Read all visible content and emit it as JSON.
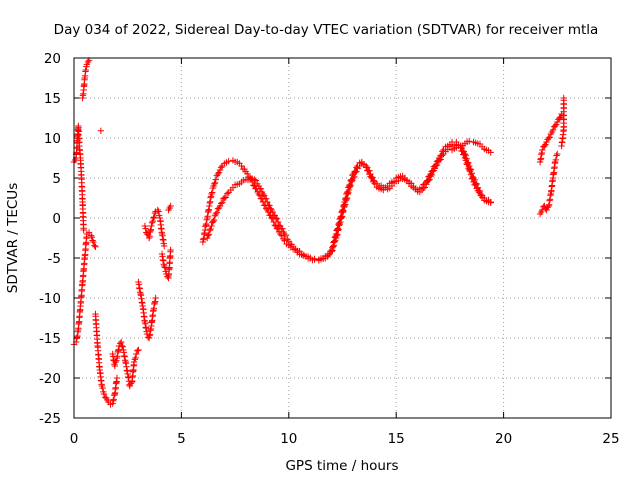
{
  "chart_data": {
    "type": "scatter",
    "title": "Day 034 of 2022, Sidereal Day-to-day VTEC variation (SDTVAR) for receiver mtla",
    "xlabel": "GPS time / hours",
    "ylabel": "SDTVAR / TECUs",
    "xlim": [
      0,
      25
    ],
    "ylim": [
      -25,
      20
    ],
    "xticks": [
      0,
      5,
      10,
      15,
      20,
      25
    ],
    "yticks": [
      -25,
      -20,
      -15,
      -10,
      -5,
      0,
      5,
      10,
      15,
      20
    ],
    "grid": true,
    "marker": "+",
    "colors": {
      "points": "#ff0000",
      "grid": "#a0a0a0",
      "axes": "#000000"
    },
    "series": [
      {
        "name": "segment-1",
        "x": [
          0.0,
          0.1,
          0.2,
          0.3,
          0.4,
          0.5,
          0.6,
          0.7,
          0.8,
          0.9,
          1.0
        ],
        "y": [
          -15.8,
          -15.5,
          -14.0,
          -11.0,
          -8.0,
          -5.0,
          -2.0,
          -1.8,
          -2.2,
          -3.0,
          -3.6
        ]
      },
      {
        "name": "segment-2",
        "x": [
          0.0,
          0.1,
          0.15,
          0.2,
          0.25,
          0.3,
          0.35,
          0.4,
          0.45
        ],
        "y": [
          7.0,
          7.5,
          9.5,
          11.5,
          9.0,
          7.5,
          5.0,
          2.0,
          -1.5
        ]
      },
      {
        "name": "segment-3",
        "x": [
          0.4,
          0.45,
          0.5,
          0.55,
          0.6,
          0.65,
          0.7
        ],
        "y": [
          15.0,
          16.0,
          17.5,
          18.5,
          19.2,
          19.5,
          19.7
        ]
      },
      {
        "name": "outlier-1",
        "x": [
          1.25
        ],
        "y": [
          10.9
        ]
      },
      {
        "name": "segment-4",
        "x": [
          1.0,
          1.1,
          1.2,
          1.3,
          1.4,
          1.5,
          1.6,
          1.7,
          1.8,
          1.9,
          2.0
        ],
        "y": [
          -12.0,
          -16.0,
          -19.0,
          -21.0,
          -22.0,
          -22.5,
          -23.0,
          -23.3,
          -23.2,
          -22.0,
          -20.0
        ]
      },
      {
        "name": "segment-5",
        "x": [
          1.8,
          1.9,
          2.0,
          2.1,
          2.2,
          2.3,
          2.4,
          2.5,
          2.6,
          2.7,
          2.8,
          2.9,
          3.0
        ],
        "y": [
          -17.0,
          -18.5,
          -17.5,
          -16.0,
          -15.5,
          -16.5,
          -18.0,
          -19.5,
          -21.0,
          -20.5,
          -18.0,
          -17.0,
          -16.5
        ]
      },
      {
        "name": "segment-6",
        "x": [
          3.0,
          3.1,
          3.2,
          3.3,
          3.4,
          3.5,
          3.6,
          3.7,
          3.8
        ],
        "y": [
          -8.0,
          -9.5,
          -11.0,
          -13.0,
          -14.5,
          -15.0,
          -13.5,
          -11.5,
          -10.0
        ]
      },
      {
        "name": "segment-7",
        "x": [
          3.3,
          3.4,
          3.5,
          3.6,
          3.7,
          3.8,
          3.9,
          4.0,
          4.1,
          4.2
        ],
        "y": [
          -1.0,
          -2.0,
          -2.5,
          -1.0,
          0.0,
          0.8,
          1.0,
          0.0,
          -2.0,
          -3.5
        ]
      },
      {
        "name": "segment-8",
        "x": [
          4.1,
          4.2,
          4.3,
          4.4,
          4.5
        ],
        "y": [
          -4.5,
          -6.0,
          -7.0,
          -7.5,
          -4.0
        ]
      },
      {
        "name": "segment-9",
        "x": [
          4.4,
          4.5
        ],
        "y": [
          1.0,
          1.5
        ]
      },
      {
        "name": "segment-10",
        "x": [
          6.0,
          6.1,
          6.2,
          6.3,
          6.4,
          6.5,
          6.6,
          6.7,
          6.8,
          6.9,
          7.0,
          7.2,
          7.4,
          7.6,
          7.8,
          8.0,
          8.2,
          8.4,
          8.6,
          8.8,
          9.0,
          9.2,
          9.4,
          9.6,
          9.8,
          10.0,
          10.2,
          10.4,
          10.6,
          10.8,
          11.0,
          11.2,
          11.4,
          11.6,
          11.8,
          12.0,
          12.2,
          12.4,
          12.6,
          12.8,
          13.0,
          13.2,
          13.4,
          13.6,
          13.8,
          14.0,
          14.2,
          14.4,
          14.6,
          14.8,
          15.0,
          15.2,
          15.4,
          15.6,
          15.8,
          16.0,
          16.2,
          16.4,
          16.6,
          16.8,
          17.0,
          17.2,
          17.4,
          17.6,
          17.8,
          18.0,
          18.2,
          18.4,
          18.6,
          18.8,
          19.0,
          19.2,
          19.4
        ],
        "y": [
          -3.0,
          -1.5,
          0.0,
          1.5,
          3.0,
          4.0,
          4.8,
          5.5,
          6.0,
          6.5,
          6.8,
          7.1,
          7.2,
          7.0,
          6.5,
          5.8,
          5.0,
          4.0,
          3.0,
          2.0,
          1.0,
          0.0,
          -1.0,
          -2.0,
          -2.8,
          -3.4,
          -3.9,
          -4.3,
          -4.6,
          -4.8,
          -5.0,
          -5.1,
          -5.2,
          -5.0,
          -4.7,
          -4.0,
          -2.0,
          0.0,
          2.0,
          4.0,
          5.5,
          6.5,
          7.0,
          6.5,
          5.5,
          4.5,
          4.0,
          3.8,
          4.0,
          4.5,
          5.0,
          5.2,
          5.0,
          4.5,
          4.0,
          3.5,
          3.8,
          4.5,
          5.5,
          6.5,
          7.5,
          8.5,
          9.0,
          9.5,
          9.5,
          9.0,
          8.0,
          6.5,
          5.0,
          3.8,
          2.8,
          2.2,
          2.0
        ]
      },
      {
        "name": "segment-11",
        "x": [
          6.2,
          6.4,
          6.6,
          6.8,
          7.0,
          7.2,
          7.4,
          7.6,
          7.8,
          8.0,
          8.2,
          8.4,
          8.6,
          8.8,
          9.0,
          9.2,
          9.4,
          9.6,
          9.8,
          10.0,
          10.2,
          10.4,
          10.6,
          10.8,
          11.0,
          11.2,
          11.4,
          11.6,
          11.8,
          12.0,
          12.2,
          12.4,
          12.6,
          12.8,
          13.0,
          13.2,
          13.4,
          13.6,
          13.8,
          14.0,
          14.2,
          14.4,
          14.6,
          14.8,
          15.0,
          15.2,
          15.4,
          15.6,
          15.8,
          16.0,
          16.2,
          16.4,
          16.6,
          16.8,
          17.0,
          17.2,
          17.4,
          17.6,
          17.8,
          18.0,
          18.2,
          18.4,
          18.6,
          18.8,
          19.0,
          19.2,
          19.4
        ],
        "y": [
          -2.5,
          -1.0,
          0.5,
          1.5,
          2.5,
          3.2,
          3.8,
          4.2,
          4.5,
          4.8,
          5.0,
          4.8,
          4.0,
          3.0,
          2.0,
          1.0,
          0.0,
          -1.0,
          -2.0,
          -2.9,
          -3.6,
          -4.1,
          -4.5,
          -4.8,
          -5.0,
          -5.2,
          -5.3,
          -5.1,
          -4.8,
          -4.2,
          -2.5,
          -0.5,
          1.5,
          3.5,
          5.0,
          6.2,
          6.8,
          6.3,
          5.2,
          4.3,
          3.7,
          3.5,
          3.6,
          4.0,
          4.6,
          5.0,
          4.8,
          4.3,
          3.8,
          3.3,
          3.5,
          4.2,
          5.2,
          6.2,
          7.2,
          8.0,
          8.6,
          9.0,
          9.2,
          8.8,
          7.5,
          6.0,
          4.5,
          3.4,
          2.6,
          2.1,
          1.9
        ]
      },
      {
        "name": "segment-12",
        "x": [
          17.6,
          17.8,
          18.0,
          18.2,
          18.4,
          18.6,
          18.8,
          19.0,
          19.2,
          19.4
        ],
        "y": [
          8.5,
          8.8,
          9.0,
          9.3,
          9.6,
          9.5,
          9.3,
          8.9,
          8.5,
          8.2
        ]
      },
      {
        "name": "segment-13",
        "x": [
          21.7,
          21.8,
          21.9,
          22.0,
          22.1,
          22.2,
          22.3,
          22.4,
          22.5,
          22.6,
          22.7
        ],
        "y": [
          7.0,
          8.5,
          9.0,
          9.5,
          10.0,
          10.5,
          11.0,
          11.5,
          12.0,
          12.5,
          13.0
        ]
      },
      {
        "name": "segment-14",
        "x": [
          21.7,
          21.8,
          21.9,
          22.0,
          22.1,
          22.2,
          22.3,
          22.4,
          22.5
        ],
        "y": [
          0.5,
          1.0,
          1.5,
          1.0,
          1.5,
          3.0,
          5.0,
          7.0,
          8.0
        ]
      },
      {
        "name": "outliers-2",
        "x": [
          22.8,
          22.8,
          22.7
        ],
        "y": [
          15.0,
          11.0,
          9.0
        ]
      }
    ]
  }
}
